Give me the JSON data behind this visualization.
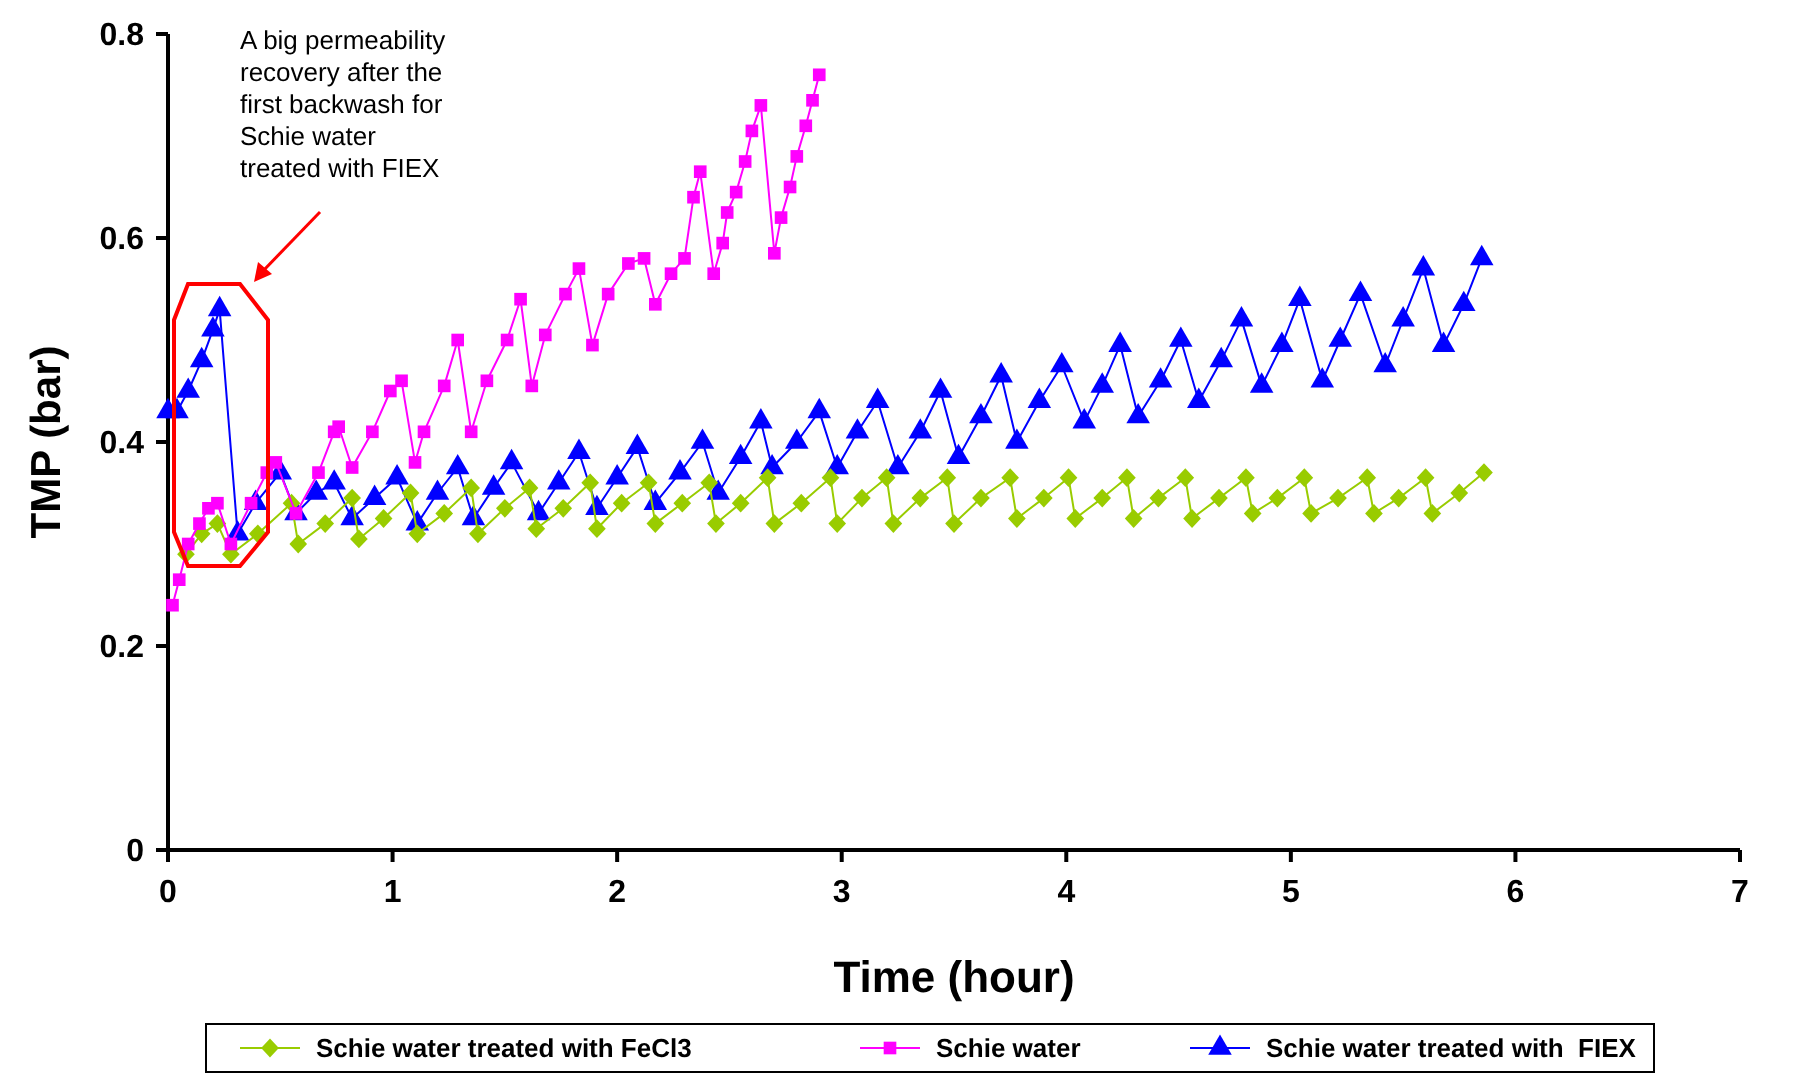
{
  "chart_data": {
    "type": "line",
    "xlabel": "Time (hour)",
    "ylabel": "TMP (bar)",
    "xlim": [
      0,
      7
    ],
    "xticks": [
      0,
      1,
      2,
      3,
      4,
      5,
      6,
      7
    ],
    "ylim": [
      0,
      0.8
    ],
    "yticks": [
      0,
      0.2,
      0.4,
      0.6,
      0.8
    ],
    "grid": false,
    "legend": "bottom",
    "line_style": "solid",
    "annotations": [
      "A big permeability recovery after the first backwash for Schie water treated with FIEX"
    ],
    "series": [
      {
        "name": "Schie water treated with FeCl3",
        "color": "#99cc00",
        "marker": "diamond",
        "x": [
          0.08,
          0.15,
          0.22,
          0.28,
          0.4,
          0.55,
          0.58,
          0.7,
          0.82,
          0.85,
          0.96,
          1.08,
          1.11,
          1.23,
          1.35,
          1.38,
          1.5,
          1.61,
          1.64,
          1.76,
          1.88,
          1.91,
          2.02,
          2.14,
          2.17,
          2.29,
          2.41,
          2.44,
          2.55,
          2.67,
          2.7,
          2.82,
          2.95,
          2.98,
          3.09,
          3.2,
          3.23,
          3.35,
          3.47,
          3.5,
          3.62,
          3.75,
          3.78,
          3.9,
          4.01,
          4.04,
          4.16,
          4.27,
          4.3,
          4.41,
          4.53,
          4.56,
          4.68,
          4.8,
          4.83,
          4.94,
          5.06,
          5.09,
          5.21,
          5.34,
          5.37,
          5.48,
          5.6,
          5.63,
          5.75,
          5.86
        ],
        "values": [
          0.29,
          0.31,
          0.32,
          0.29,
          0.31,
          0.34,
          0.3,
          0.32,
          0.345,
          0.305,
          0.325,
          0.35,
          0.31,
          0.33,
          0.355,
          0.31,
          0.335,
          0.355,
          0.315,
          0.335,
          0.36,
          0.315,
          0.34,
          0.36,
          0.32,
          0.34,
          0.36,
          0.32,
          0.34,
          0.365,
          0.32,
          0.34,
          0.365,
          0.32,
          0.345,
          0.365,
          0.32,
          0.345,
          0.365,
          0.32,
          0.345,
          0.365,
          0.325,
          0.345,
          0.365,
          0.325,
          0.345,
          0.365,
          0.325,
          0.345,
          0.365,
          0.325,
          0.345,
          0.365,
          0.33,
          0.345,
          0.365,
          0.33,
          0.345,
          0.365,
          0.33,
          0.345,
          0.365,
          0.33,
          0.35,
          0.37
        ]
      },
      {
        "name": "Schie water",
        "color": "#ff00ff",
        "marker": "square",
        "x": [
          0.02,
          0.05,
          0.09,
          0.14,
          0.18,
          0.22,
          0.28,
          0.37,
          0.44,
          0.48,
          0.57,
          0.67,
          0.74,
          0.76,
          0.82,
          0.91,
          0.99,
          1.04,
          1.1,
          1.14,
          1.23,
          1.29,
          1.35,
          1.42,
          1.51,
          1.57,
          1.62,
          1.68,
          1.77,
          1.83,
          1.89,
          1.96,
          2.05,
          2.12,
          2.17,
          2.24,
          2.3,
          2.34,
          2.37,
          2.43,
          2.47,
          2.49,
          2.53,
          2.57,
          2.6,
          2.64,
          2.7,
          2.73,
          2.77,
          2.8,
          2.84,
          2.87,
          2.9
        ],
        "values": [
          0.24,
          0.265,
          0.3,
          0.32,
          0.335,
          0.34,
          0.3,
          0.34,
          0.37,
          0.38,
          0.33,
          0.37,
          0.41,
          0.415,
          0.375,
          0.41,
          0.45,
          0.46,
          0.38,
          0.41,
          0.455,
          0.5,
          0.41,
          0.46,
          0.5,
          0.54,
          0.455,
          0.505,
          0.545,
          0.57,
          0.495,
          0.545,
          0.575,
          0.58,
          0.535,
          0.565,
          0.58,
          0.64,
          0.665,
          0.565,
          0.595,
          0.625,
          0.645,
          0.675,
          0.705,
          0.73,
          0.585,
          0.62,
          0.65,
          0.68,
          0.71,
          0.735,
          0.76
        ]
      },
      {
        "name": "Schie water treated with  FIEX",
        "color": "#0000ff",
        "marker": "triangle",
        "x": [
          0,
          0.04,
          0.09,
          0.15,
          0.2,
          0.23,
          0.31,
          0.39,
          0.5,
          0.57,
          0.66,
          0.74,
          0.82,
          0.92,
          1.02,
          1.11,
          1.2,
          1.29,
          1.36,
          1.45,
          1.53,
          1.65,
          1.74,
          1.83,
          1.91,
          2,
          2.09,
          2.17,
          2.28,
          2.38,
          2.45,
          2.55,
          2.64,
          2.69,
          2.8,
          2.9,
          2.98,
          3.07,
          3.16,
          3.25,
          3.35,
          3.44,
          3.52,
          3.62,
          3.71,
          3.78,
          3.88,
          3.98,
          4.08,
          4.16,
          4.24,
          4.32,
          4.42,
          4.51,
          4.59,
          4.69,
          4.78,
          4.87,
          4.96,
          5.04,
          5.14,
          5.22,
          5.31,
          5.42,
          5.5,
          5.59,
          5.68,
          5.77,
          5.85
        ],
        "values": [
          0.43,
          0.43,
          0.45,
          0.48,
          0.51,
          0.53,
          0.31,
          0.34,
          0.37,
          0.33,
          0.35,
          0.36,
          0.325,
          0.345,
          0.365,
          0.32,
          0.35,
          0.375,
          0.325,
          0.355,
          0.38,
          0.33,
          0.36,
          0.39,
          0.335,
          0.365,
          0.395,
          0.34,
          0.37,
          0.4,
          0.35,
          0.385,
          0.42,
          0.375,
          0.4,
          0.43,
          0.375,
          0.41,
          0.44,
          0.375,
          0.41,
          0.45,
          0.385,
          0.425,
          0.465,
          0.4,
          0.44,
          0.475,
          0.42,
          0.455,
          0.495,
          0.425,
          0.46,
          0.5,
          0.44,
          0.48,
          0.52,
          0.455,
          0.495,
          0.54,
          0.46,
          0.5,
          0.545,
          0.475,
          0.52,
          0.57,
          0.495,
          0.535,
          0.58
        ]
      }
    ]
  }
}
